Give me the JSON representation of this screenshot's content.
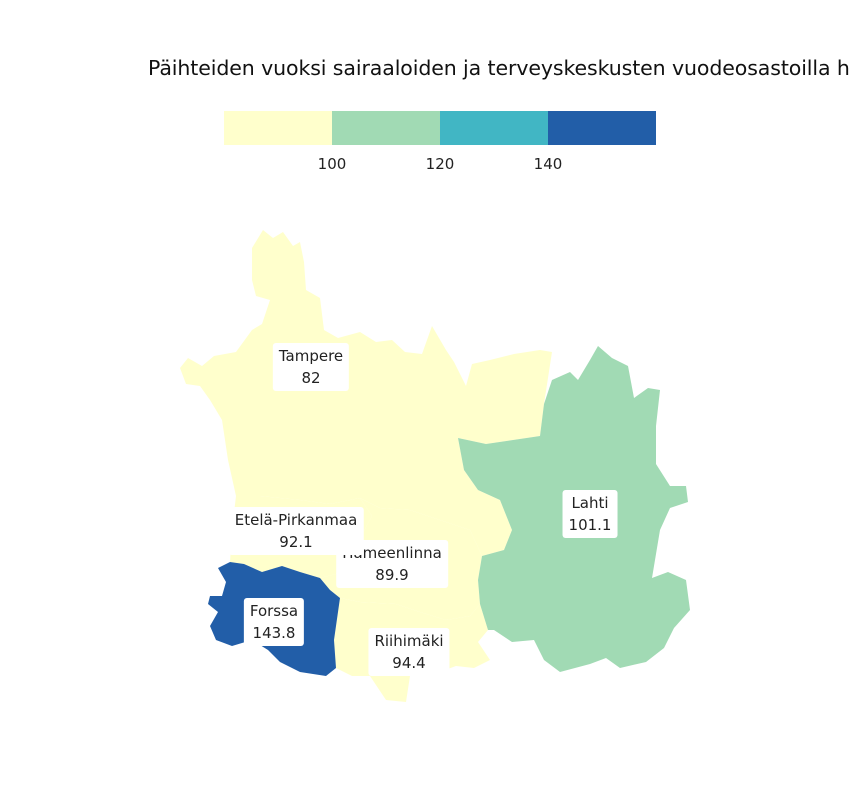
{
  "title": "Päihteiden vuoksi sairaaloiden ja terveyskeskusten vuodeosastoilla h",
  "legend": {
    "colors": [
      "#ffffcc",
      "#a1dab4",
      "#41b6c4",
      "#225ea8"
    ],
    "ticks": [
      "100",
      "120",
      "140"
    ]
  },
  "regions": [
    {
      "name": "Tampere",
      "value": "82",
      "color": "#ffffcc"
    },
    {
      "name": "Etelä-Pirkanmaa",
      "value": "92.1",
      "color": "#ffffcc"
    },
    {
      "name": "Hämeenlinna",
      "value": "89.9",
      "color": "#ffffcc"
    },
    {
      "name": "Riihimäki",
      "value": "94.4",
      "color": "#ffffcc"
    },
    {
      "name": "Lahti",
      "value": "101.1",
      "color": "#a1dab4"
    },
    {
      "name": "Forssa",
      "value": "143.8",
      "color": "#225ea8"
    }
  ]
}
